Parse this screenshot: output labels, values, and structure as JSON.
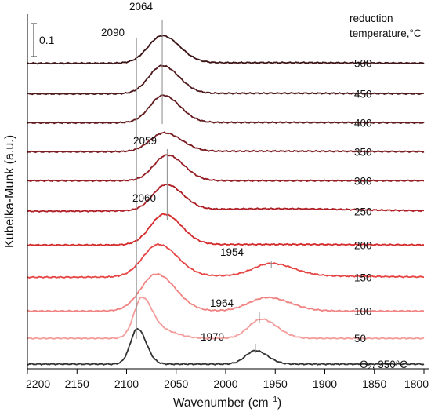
{
  "chart_data": {
    "type": "line",
    "xlabel": "Wavenumber (cm",
    "xlabel_sup": "−1",
    "xlabel_close": ")",
    "ylabel": "Kubelka-Munk (a.u.)",
    "xlim": [
      2200,
      1800
    ],
    "x_reversed": true,
    "x_ticks": [
      2200,
      2150,
      2100,
      2050,
      2000,
      1950,
      1900,
      1850,
      1800
    ],
    "scale_bar_label": "0.1",
    "scale_bar_value": 0.1,
    "legend_title_line1": "reduction",
    "legend_title_line2": "temperature,°C",
    "series": [
      {
        "name": "500",
        "color": "#3d1518",
        "offset": 9.35,
        "peaks": [
          {
            "pos": 2064,
            "amp": 0.85,
            "w": 20
          }
        ],
        "base_slope": 0.02
      },
      {
        "name": "450",
        "color": "#4e191c",
        "offset": 8.4,
        "peaks": [
          {
            "pos": 2064,
            "amp": 0.87,
            "w": 19
          }
        ],
        "base_slope": 0.02
      },
      {
        "name": "400",
        "color": "#611a1e",
        "offset": 7.5,
        "peaks": [
          {
            "pos": 2063,
            "amp": 0.85,
            "w": 19
          }
        ],
        "base_slope": 0.01
      },
      {
        "name": "350",
        "color": "#7b1b20",
        "offset": 6.6,
        "peaks": [
          {
            "pos": 2062,
            "amp": 0.58,
            "w": 20
          }
        ],
        "base_slope": 0.02
      },
      {
        "name": "300",
        "color": "#941c22",
        "offset": 5.7,
        "peaks": [
          {
            "pos": 2059,
            "amp": 0.8,
            "w": 19
          }
        ],
        "base_slope": 0.0
      },
      {
        "name": "250",
        "color": "#b01e25",
        "offset": 4.75,
        "peaks": [
          {
            "pos": 2060,
            "amp": 0.8,
            "w": 19
          }
        ],
        "base_slope": 0.08
      },
      {
        "name": "200",
        "color": "#d42a2c",
        "offset": 3.7,
        "peaks": [
          {
            "pos": 2062,
            "amp": 0.95,
            "w": 20
          }
        ],
        "base_slope": 0.02
      },
      {
        "name": "150",
        "color": "#e74543",
        "offset": 2.7,
        "peaks": [
          {
            "pos": 2068,
            "amp": 1.0,
            "w": 22
          },
          {
            "pos": 1954,
            "amp": 0.38,
            "w": 25
          }
        ],
        "base_slope": 0.05
      },
      {
        "name": "100",
        "color": "#f08382",
        "offset": 1.65,
        "peaks": [
          {
            "pos": 2070,
            "amp": 1.15,
            "w": 22
          },
          {
            "pos": 1958,
            "amp": 0.42,
            "w": 26
          }
        ],
        "base_slope": 0.0
      },
      {
        "name": "50",
        "color": "#f39c9a",
        "offset": 0.8,
        "peaks": [
          {
            "pos": 2085,
            "amp": 1.1,
            "w": 11
          },
          {
            "pos": 2070,
            "amp": 0.3,
            "w": 20
          },
          {
            "pos": 1964,
            "amp": 0.6,
            "w": 18
          }
        ],
        "base_slope": 0.0
      },
      {
        "name": "O₂, 350°C",
        "color": "#333333",
        "offset": 0.0,
        "peaks": [
          {
            "pos": 2089,
            "amp": 1.1,
            "w": 10
          },
          {
            "pos": 1970,
            "amp": 0.42,
            "w": 14
          }
        ],
        "base_slope": 0.0
      }
    ],
    "peak_labels": [
      {
        "text": "2064"
      },
      {
        "text": "2090"
      },
      {
        "text": "2059"
      },
      {
        "text": "2060"
      },
      {
        "text": "1954"
      },
      {
        "text": "1964"
      },
      {
        "text": "1970"
      }
    ],
    "guide_lines": [
      2090,
      2064,
      2059
    ]
  }
}
